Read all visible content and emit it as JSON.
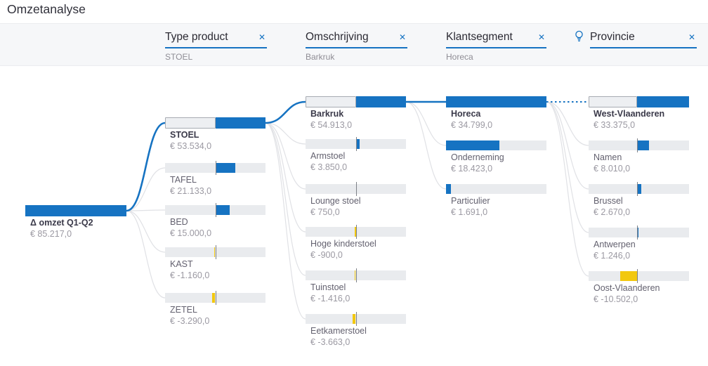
{
  "title": "Omzetanalyse",
  "colors": {
    "accent_blue": "#1673C2",
    "negative_yellow": "#F2C80F",
    "track_gray": "#e9ebee"
  },
  "filter_bar": {
    "columns": [
      {
        "label": "Type product",
        "selected_value": "STOEL",
        "close_label": "✕",
        "ai_split": false
      },
      {
        "label": "Omschrijving",
        "selected_value": "Barkruk",
        "close_label": "✕",
        "ai_split": false
      },
      {
        "label": "Klantsegment",
        "selected_value": "Horeca",
        "close_label": "✕",
        "ai_split": false
      },
      {
        "label": "Provincie",
        "selected_value": "",
        "close_label": "✕",
        "ai_split": true
      }
    ]
  },
  "chart_data": {
    "type": "decomposition-tree",
    "title": "Omzetanalyse",
    "root": {
      "label": "Δ omzet Q1-Q2",
      "value": 85217.0,
      "value_str": "€ 85.217,0"
    },
    "levels": [
      {
        "field": "Type product",
        "selected": "STOEL",
        "nodes": [
          {
            "label": "STOEL",
            "value": 53534.0,
            "value_str": "€ 53.534,0",
            "selected": true
          },
          {
            "label": "TAFEL",
            "value": 21133.0,
            "value_str": "€ 21.133,0"
          },
          {
            "label": "BED",
            "value": 15000.0,
            "value_str": "€ 15.000,0"
          },
          {
            "label": "KAST",
            "value": -1160.0,
            "value_str": "€ -1.160,0"
          },
          {
            "label": "ZETEL",
            "value": -3290.0,
            "value_str": "€ -3.290,0"
          }
        ]
      },
      {
        "field": "Omschrijving",
        "selected": "Barkruk",
        "nodes": [
          {
            "label": "Barkruk",
            "value": 54913.0,
            "value_str": "€ 54.913,0",
            "selected": true
          },
          {
            "label": "Armstoel",
            "value": 3850.0,
            "value_str": "€ 3.850,0"
          },
          {
            "label": "Lounge stoel",
            "value": 750.0,
            "value_str": "€ 750,0"
          },
          {
            "label": "Hoge kinderstoel",
            "value": -900.0,
            "value_str": "€ -900,0"
          },
          {
            "label": "Tuinstoel",
            "value": -1416.0,
            "value_str": "€ -1.416,0"
          },
          {
            "label": "Eetkamerstoel",
            "value": -3663.0,
            "value_str": "€ -3.663,0"
          }
        ]
      },
      {
        "field": "Klantsegment",
        "selected": "Horeca",
        "nodes": [
          {
            "label": "Horeca",
            "value": 34799.0,
            "value_str": "€ 34.799,0",
            "selected": true
          },
          {
            "label": "Onderneming",
            "value": 18423.0,
            "value_str": "€ 18.423,0"
          },
          {
            "label": "Particulier",
            "value": 1691.0,
            "value_str": "€ 1.691,0"
          }
        ]
      },
      {
        "field": "Provincie",
        "selected": "West-Vlaanderen",
        "ai_split": true,
        "nodes": [
          {
            "label": "West-Vlaanderen",
            "value": 33375.0,
            "value_str": "€ 33.375,0",
            "selected": true
          },
          {
            "label": "Namen",
            "value": 8010.0,
            "value_str": "€ 8.010,0"
          },
          {
            "label": "Brussel",
            "value": 2670.0,
            "value_str": "€ 2.670,0"
          },
          {
            "label": "Antwerpen",
            "value": 1246.0,
            "value_str": "€ 1.246,0"
          },
          {
            "label": "Oost-Vlaanderen",
            "value": -10502.0,
            "value_str": "€ -10.502,0"
          }
        ]
      }
    ]
  }
}
